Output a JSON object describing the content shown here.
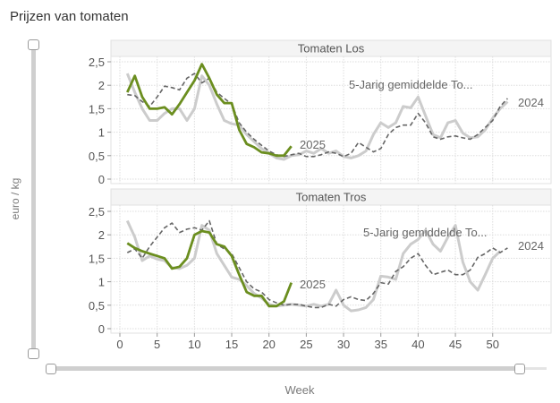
{
  "title": "Prijzen van tomaten",
  "colors": {
    "y2025": "#6b8e1f",
    "y2024": "#cccccc",
    "avg5": "#666666"
  },
  "chart_data": [
    {
      "type": "line",
      "title": "Tomaten Los",
      "xlabel": "Week",
      "ylabel": "euro / kg",
      "xlim": [
        -1,
        58
      ],
      "ylim": [
        0,
        2.6
      ],
      "x_ticks": [
        0,
        5,
        10,
        15,
        20,
        25,
        30,
        35,
        40,
        45,
        50
      ],
      "y_ticks": [
        "0",
        "0,5",
        "1",
        "1,5",
        "2",
        "2,5"
      ],
      "y_tick_values": [
        0,
        0.5,
        1,
        1.5,
        2,
        2.5
      ],
      "grid": true,
      "series": [
        {
          "name": "2024",
          "label": "2024",
          "style": "solid-light",
          "x": [
            1,
            2,
            3,
            4,
            5,
            6,
            7,
            8,
            9,
            10,
            11,
            12,
            13,
            14,
            15,
            16,
            17,
            18,
            19,
            20,
            21,
            22,
            23,
            24,
            25,
            26,
            27,
            28,
            29,
            30,
            31,
            32,
            33,
            34,
            35,
            36,
            37,
            38,
            39,
            40,
            41,
            42,
            43,
            44,
            45,
            46,
            47,
            48,
            49,
            50,
            51,
            52
          ],
          "values": [
            2.25,
            1.85,
            1.5,
            1.25,
            1.25,
            1.4,
            1.5,
            1.5,
            1.25,
            1.5,
            2.2,
            2.0,
            1.6,
            1.25,
            1.18,
            1.15,
            0.95,
            0.8,
            0.65,
            0.55,
            0.45,
            0.42,
            0.5,
            0.52,
            0.6,
            0.55,
            0.65,
            0.55,
            0.6,
            0.48,
            0.45,
            0.5,
            0.6,
            0.95,
            1.2,
            1.1,
            1.2,
            1.55,
            1.52,
            1.75,
            1.35,
            0.95,
            0.88,
            1.2,
            1.25,
            0.98,
            0.88,
            0.9,
            1.05,
            1.3,
            1.5,
            1.65
          ]
        },
        {
          "name": "5-Jarig gemiddelde Tomaten Los",
          "label": "5-Jarig gemiddelde To...",
          "style": "dashed",
          "x": [
            1,
            2,
            3,
            4,
            5,
            6,
            7,
            8,
            9,
            10,
            11,
            12,
            13,
            14,
            15,
            16,
            17,
            18,
            19,
            20,
            21,
            22,
            23,
            24,
            25,
            26,
            27,
            28,
            29,
            30,
            31,
            32,
            33,
            34,
            35,
            36,
            37,
            38,
            39,
            40,
            41,
            42,
            43,
            44,
            45,
            46,
            47,
            48,
            49,
            50,
            51,
            52
          ],
          "values": [
            1.8,
            1.78,
            1.65,
            1.55,
            1.75,
            1.98,
            1.95,
            1.9,
            2.15,
            2.25,
            2.05,
            2.15,
            1.85,
            1.72,
            1.6,
            1.2,
            1.0,
            0.85,
            0.72,
            0.6,
            0.52,
            0.48,
            0.52,
            0.55,
            0.48,
            0.48,
            0.52,
            0.58,
            0.55,
            0.48,
            0.55,
            0.78,
            0.68,
            0.58,
            0.65,
            0.95,
            1.1,
            1.15,
            1.15,
            1.4,
            1.2,
            0.9,
            0.85,
            0.9,
            0.92,
            0.88,
            0.85,
            0.95,
            1.1,
            1.25,
            1.55,
            1.72
          ]
        },
        {
          "name": "2025",
          "label": "2025",
          "style": "solid-bold",
          "x": [
            1,
            2,
            3,
            4,
            5,
            6,
            7,
            8,
            9,
            10,
            11,
            12,
            13,
            14,
            15,
            16,
            17,
            18,
            19,
            20,
            21,
            22,
            23
          ],
          "values": [
            1.85,
            2.2,
            1.75,
            1.5,
            1.5,
            1.53,
            1.38,
            1.6,
            1.85,
            2.1,
            2.45,
            2.15,
            1.8,
            1.62,
            1.62,
            1.05,
            0.75,
            0.68,
            0.57,
            0.55,
            0.5,
            0.5,
            0.7
          ]
        }
      ]
    },
    {
      "type": "line",
      "title": "Tomaten Tros",
      "xlabel": "Week",
      "ylabel": "euro / kg",
      "xlim": [
        -1,
        58
      ],
      "ylim": [
        0,
        2.6
      ],
      "x_ticks": [
        0,
        5,
        10,
        15,
        20,
        25,
        30,
        35,
        40,
        45,
        50
      ],
      "y_ticks": [
        "0",
        "0,5",
        "1",
        "1,5",
        "2",
        "2,5"
      ],
      "y_tick_values": [
        0,
        0.5,
        1,
        1.5,
        2,
        2.5
      ],
      "grid": true,
      "series": [
        {
          "name": "2024",
          "label": "2024",
          "style": "solid-light",
          "x": [
            1,
            2,
            3,
            4,
            5,
            6,
            7,
            8,
            9,
            10,
            11,
            12,
            13,
            14,
            15,
            16,
            17,
            18,
            19,
            20,
            21,
            22,
            23,
            24,
            25,
            26,
            27,
            28,
            29,
            30,
            31,
            32,
            33,
            34,
            35,
            36,
            37,
            38,
            39,
            40,
            41,
            42,
            43,
            44,
            45,
            46,
            47,
            48,
            49,
            50,
            51
          ],
          "values": [
            2.3,
            1.95,
            1.45,
            1.55,
            1.48,
            1.45,
            1.3,
            1.28,
            1.35,
            1.5,
            2.2,
            2.1,
            1.6,
            1.35,
            1.1,
            1.05,
            0.92,
            0.75,
            0.65,
            0.52,
            0.48,
            0.5,
            0.52,
            0.5,
            0.48,
            0.52,
            0.48,
            0.52,
            0.82,
            0.5,
            0.38,
            0.4,
            0.45,
            0.62,
            1.12,
            1.1,
            1.05,
            1.6,
            1.8,
            1.9,
            2.1,
            1.8,
            1.65,
            1.95,
            2.2,
            1.42,
            1.0,
            0.82,
            1.15,
            1.5,
            1.65
          ]
        },
        {
          "name": "5-Jarig gemiddelde Tomaten Tros",
          "label": "5-Jarig gemiddelde To...",
          "style": "dashed",
          "x": [
            1,
            2,
            3,
            4,
            5,
            6,
            7,
            8,
            9,
            10,
            11,
            12,
            13,
            14,
            15,
            16,
            17,
            18,
            19,
            20,
            21,
            22,
            23,
            24,
            25,
            26,
            27,
            28,
            29,
            30,
            31,
            32,
            33,
            34,
            35,
            36,
            37,
            38,
            39,
            40,
            41,
            42,
            43,
            44,
            45,
            46,
            47,
            48,
            49,
            50,
            51,
            52
          ],
          "values": [
            1.62,
            1.7,
            1.5,
            1.75,
            1.95,
            2.15,
            2.25,
            2.05,
            2.12,
            2.15,
            2.1,
            2.3,
            1.8,
            1.7,
            1.6,
            1.3,
            1.0,
            0.85,
            0.78,
            0.62,
            0.55,
            0.5,
            0.52,
            0.52,
            0.48,
            0.45,
            0.45,
            0.52,
            0.48,
            0.62,
            0.68,
            0.62,
            0.6,
            0.75,
            0.98,
            0.95,
            1.22,
            1.32,
            1.5,
            1.6,
            1.35,
            1.15,
            1.2,
            1.25,
            1.15,
            1.15,
            1.25,
            1.52,
            1.6,
            1.72,
            1.62,
            1.72
          ]
        },
        {
          "name": "2025",
          "label": "2025",
          "style": "solid-bold",
          "x": [
            1,
            2,
            3,
            4,
            5,
            6,
            7,
            8,
            9,
            10,
            11,
            12,
            13,
            14,
            15,
            16,
            17,
            18,
            19,
            20,
            21,
            22,
            23
          ],
          "values": [
            1.82,
            1.72,
            1.65,
            1.6,
            1.55,
            1.5,
            1.28,
            1.32,
            1.5,
            2.0,
            2.08,
            2.05,
            1.8,
            1.75,
            1.55,
            1.15,
            0.78,
            0.7,
            0.7,
            0.48,
            0.48,
            0.58,
            0.98
          ]
        }
      ]
    }
  ]
}
